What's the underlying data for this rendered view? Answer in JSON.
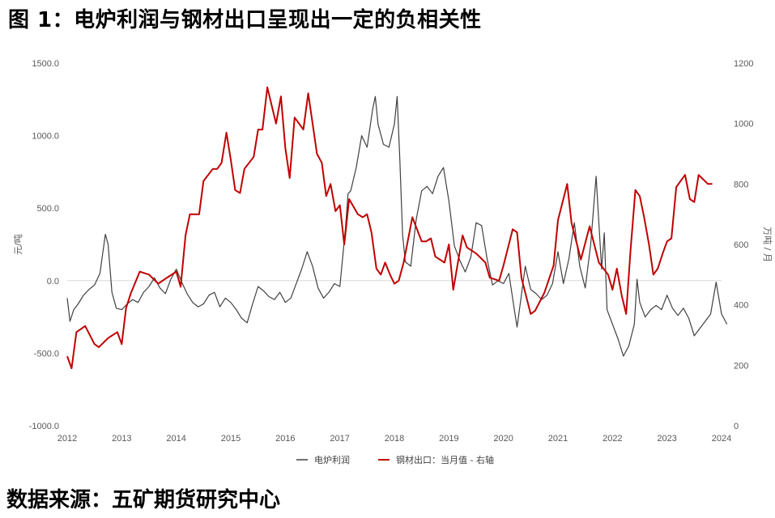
{
  "title": "图 1：电炉利润与钢材出口呈现出一定的负相关性",
  "source": "数据来源：五矿期货研究中心",
  "chart_data": {
    "type": "line",
    "title": "",
    "x_ticks": [
      "2012",
      "2013",
      "2014",
      "2015",
      "2016",
      "2017",
      "2018",
      "2019",
      "2020",
      "2021",
      "2022",
      "2023",
      "2024"
    ],
    "y_left": {
      "label": "元/吨",
      "ylim": [
        -1000,
        1500
      ],
      "ticks": [
        "1500.0",
        "1000.0",
        "500.0",
        "0.0",
        "-500.0",
        "-1000.0"
      ]
    },
    "y_right": {
      "label": "万吨 / 月",
      "ylim": [
        0,
        1200
      ],
      "ticks": [
        "1200",
        "1000",
        "800",
        "600",
        "400",
        "200",
        "0"
      ]
    },
    "legend": {
      "position": "bottom"
    },
    "series": [
      {
        "name": "电炉利润",
        "axis": "left",
        "color": "#404040",
        "points": [
          [
            2012.0,
            -120
          ],
          [
            2012.05,
            -280
          ],
          [
            2012.12,
            -200
          ],
          [
            2012.2,
            -160
          ],
          [
            2012.3,
            -100
          ],
          [
            2012.4,
            -60
          ],
          [
            2012.5,
            -30
          ],
          [
            2012.6,
            50
          ],
          [
            2012.7,
            320
          ],
          [
            2012.75,
            250
          ],
          [
            2012.82,
            -80
          ],
          [
            2012.9,
            -190
          ],
          [
            2013.0,
            -200
          ],
          [
            2013.1,
            -160
          ],
          [
            2013.2,
            -130
          ],
          [
            2013.3,
            -150
          ],
          [
            2013.4,
            -80
          ],
          [
            2013.5,
            -40
          ],
          [
            2013.6,
            20
          ],
          [
            2013.7,
            -50
          ],
          [
            2013.8,
            -90
          ],
          [
            2013.9,
            10
          ],
          [
            2014.0,
            80
          ],
          [
            2014.1,
            -10
          ],
          [
            2014.2,
            -90
          ],
          [
            2014.3,
            -150
          ],
          [
            2014.4,
            -180
          ],
          [
            2014.5,
            -160
          ],
          [
            2014.6,
            -100
          ],
          [
            2014.7,
            -80
          ],
          [
            2014.8,
            -180
          ],
          [
            2014.9,
            -120
          ],
          [
            2015.0,
            -150
          ],
          [
            2015.1,
            -200
          ],
          [
            2015.2,
            -260
          ],
          [
            2015.3,
            -290
          ],
          [
            2015.4,
            -160
          ],
          [
            2015.5,
            -40
          ],
          [
            2015.6,
            -70
          ],
          [
            2015.7,
            -110
          ],
          [
            2015.8,
            -130
          ],
          [
            2015.9,
            -80
          ],
          [
            2016.0,
            -150
          ],
          [
            2016.1,
            -120
          ],
          [
            2016.2,
            -20
          ],
          [
            2016.3,
            80
          ],
          [
            2016.4,
            200
          ],
          [
            2016.5,
            100
          ],
          [
            2016.6,
            -50
          ],
          [
            2016.7,
            -120
          ],
          [
            2016.8,
            -80
          ],
          [
            2016.9,
            -20
          ],
          [
            2017.0,
            -40
          ],
          [
            2017.1,
            350
          ],
          [
            2017.15,
            600
          ],
          [
            2017.2,
            620
          ],
          [
            2017.3,
            780
          ],
          [
            2017.4,
            1000
          ],
          [
            2017.5,
            920
          ],
          [
            2017.6,
            1180
          ],
          [
            2017.65,
            1270
          ],
          [
            2017.7,
            1080
          ],
          [
            2017.8,
            940
          ],
          [
            2017.9,
            920
          ],
          [
            2018.0,
            1080
          ],
          [
            2018.05,
            1270
          ],
          [
            2018.1,
            840
          ],
          [
            2018.15,
            320
          ],
          [
            2018.2,
            130
          ],
          [
            2018.3,
            100
          ],
          [
            2018.4,
            420
          ],
          [
            2018.5,
            620
          ],
          [
            2018.6,
            650
          ],
          [
            2018.7,
            600
          ],
          [
            2018.8,
            720
          ],
          [
            2018.9,
            780
          ],
          [
            2019.0,
            550
          ],
          [
            2019.1,
            240
          ],
          [
            2019.2,
            140
          ],
          [
            2019.3,
            60
          ],
          [
            2019.4,
            160
          ],
          [
            2019.5,
            400
          ],
          [
            2019.6,
            380
          ],
          [
            2019.7,
            150
          ],
          [
            2019.8,
            -30
          ],
          [
            2019.9,
            0
          ],
          [
            2020.0,
            -20
          ],
          [
            2020.1,
            50
          ],
          [
            2020.2,
            -200
          ],
          [
            2020.25,
            -320
          ],
          [
            2020.3,
            -180
          ],
          [
            2020.4,
            100
          ],
          [
            2020.5,
            -60
          ],
          [
            2020.6,
            -90
          ],
          [
            2020.7,
            -130
          ],
          [
            2020.8,
            -100
          ],
          [
            2020.9,
            -20
          ],
          [
            2021.0,
            200
          ],
          [
            2021.1,
            -20
          ],
          [
            2021.2,
            150
          ],
          [
            2021.3,
            400
          ],
          [
            2021.4,
            100
          ],
          [
            2021.5,
            -50
          ],
          [
            2021.6,
            250
          ],
          [
            2021.7,
            720
          ],
          [
            2021.75,
            400
          ],
          [
            2021.8,
            80
          ],
          [
            2021.85,
            330
          ],
          [
            2021.9,
            -200
          ],
          [
            2022.0,
            -300
          ],
          [
            2022.1,
            -400
          ],
          [
            2022.2,
            -520
          ],
          [
            2022.3,
            -450
          ],
          [
            2022.4,
            -300
          ],
          [
            2022.45,
            10
          ],
          [
            2022.5,
            -150
          ],
          [
            2022.6,
            -250
          ],
          [
            2022.7,
            -200
          ],
          [
            2022.8,
            -170
          ],
          [
            2022.9,
            -200
          ],
          [
            2023.0,
            -100
          ],
          [
            2023.1,
            -190
          ],
          [
            2023.2,
            -240
          ],
          [
            2023.3,
            -190
          ],
          [
            2023.4,
            -260
          ],
          [
            2023.5,
            -380
          ],
          [
            2023.6,
            -330
          ],
          [
            2023.7,
            -280
          ],
          [
            2023.8,
            -230
          ],
          [
            2023.9,
            -10
          ],
          [
            2024.0,
            -230
          ],
          [
            2024.1,
            -300
          ]
        ]
      },
      {
        "name": "钢材出口：当月值 - 右轴",
        "axis": "right",
        "color": "#c00000",
        "points": [
          [
            2012.0,
            230
          ],
          [
            2012.08,
            190
          ],
          [
            2012.17,
            310
          ],
          [
            2012.33,
            330
          ],
          [
            2012.5,
            270
          ],
          [
            2012.58,
            260
          ],
          [
            2012.75,
            290
          ],
          [
            2012.92,
            310
          ],
          [
            2013.0,
            270
          ],
          [
            2013.08,
            390
          ],
          [
            2013.17,
            440
          ],
          [
            2013.33,
            510
          ],
          [
            2013.5,
            500
          ],
          [
            2013.67,
            470
          ],
          [
            2013.83,
            490
          ],
          [
            2014.0,
            510
          ],
          [
            2014.08,
            460
          ],
          [
            2014.17,
            630
          ],
          [
            2014.25,
            700
          ],
          [
            2014.42,
            700
          ],
          [
            2014.5,
            810
          ],
          [
            2014.67,
            850
          ],
          [
            2014.75,
            850
          ],
          [
            2014.83,
            870
          ],
          [
            2014.92,
            970
          ],
          [
            2015.0,
            880
          ],
          [
            2015.08,
            780
          ],
          [
            2015.17,
            770
          ],
          [
            2015.25,
            850
          ],
          [
            2015.42,
            890
          ],
          [
            2015.5,
            980
          ],
          [
            2015.58,
            980
          ],
          [
            2015.67,
            1120
          ],
          [
            2015.83,
            1000
          ],
          [
            2015.92,
            1090
          ],
          [
            2016.0,
            920
          ],
          [
            2016.08,
            820
          ],
          [
            2016.17,
            1020
          ],
          [
            2016.33,
            980
          ],
          [
            2016.42,
            1100
          ],
          [
            2016.58,
            900
          ],
          [
            2016.67,
            870
          ],
          [
            2016.75,
            760
          ],
          [
            2016.83,
            800
          ],
          [
            2016.92,
            710
          ],
          [
            2017.0,
            730
          ],
          [
            2017.08,
            600
          ],
          [
            2017.17,
            750
          ],
          [
            2017.33,
            700
          ],
          [
            2017.42,
            690
          ],
          [
            2017.5,
            700
          ],
          [
            2017.58,
            640
          ],
          [
            2017.67,
            520
          ],
          [
            2017.75,
            500
          ],
          [
            2017.83,
            540
          ],
          [
            2017.92,
            500
          ],
          [
            2018.0,
            470
          ],
          [
            2018.08,
            480
          ],
          [
            2018.17,
            540
          ],
          [
            2018.33,
            690
          ],
          [
            2018.5,
            610
          ],
          [
            2018.58,
            610
          ],
          [
            2018.67,
            620
          ],
          [
            2018.75,
            560
          ],
          [
            2018.92,
            540
          ],
          [
            2019.0,
            600
          ],
          [
            2019.08,
            450
          ],
          [
            2019.25,
            630
          ],
          [
            2019.33,
            590
          ],
          [
            2019.5,
            570
          ],
          [
            2019.67,
            540
          ],
          [
            2019.75,
            490
          ],
          [
            2019.92,
            480
          ],
          [
            2020.0,
            530
          ],
          [
            2020.17,
            650
          ],
          [
            2020.25,
            640
          ],
          [
            2020.33,
            490
          ],
          [
            2020.5,
            370
          ],
          [
            2020.58,
            380
          ],
          [
            2020.75,
            440
          ],
          [
            2020.92,
            530
          ],
          [
            2021.0,
            680
          ],
          [
            2021.17,
            800
          ],
          [
            2021.25,
            670
          ],
          [
            2021.42,
            550
          ],
          [
            2021.58,
            660
          ],
          [
            2021.75,
            540
          ],
          [
            2021.92,
            500
          ],
          [
            2022.0,
            450
          ],
          [
            2022.08,
            520
          ],
          [
            2022.17,
            430
          ],
          [
            2022.25,
            370
          ],
          [
            2022.33,
            580
          ],
          [
            2022.42,
            780
          ],
          [
            2022.5,
            760
          ],
          [
            2022.58,
            690
          ],
          [
            2022.67,
            600
          ],
          [
            2022.75,
            500
          ],
          [
            2022.83,
            520
          ],
          [
            2022.92,
            570
          ],
          [
            2023.0,
            610
          ],
          [
            2023.08,
            620
          ],
          [
            2023.17,
            790
          ],
          [
            2023.33,
            830
          ],
          [
            2023.42,
            750
          ],
          [
            2023.5,
            740
          ],
          [
            2023.58,
            830
          ],
          [
            2023.75,
            800
          ],
          [
            2023.83,
            800
          ]
        ]
      }
    ]
  }
}
